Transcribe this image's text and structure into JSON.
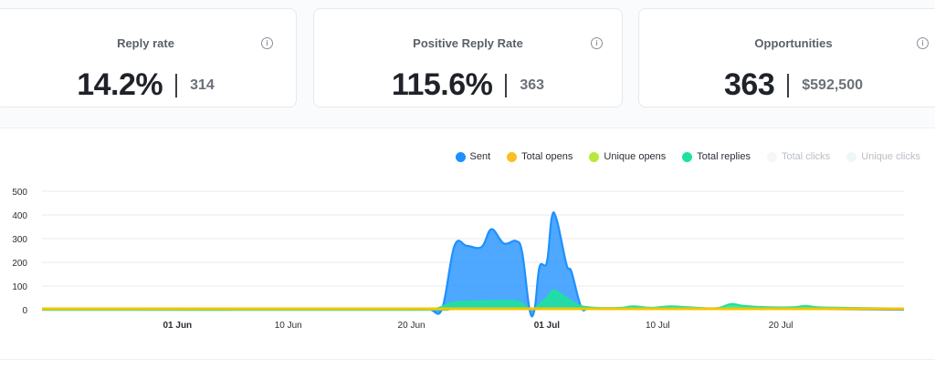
{
  "cards": [
    {
      "title": "Reply rate",
      "value": "14.2%",
      "sub": "314"
    },
    {
      "title": "Positive Reply Rate",
      "value": "115.6%",
      "sub": "363"
    },
    {
      "title": "Opportunities",
      "value": "363",
      "sub": "$592,500"
    }
  ],
  "info_icon_glyph": "i",
  "legend": [
    {
      "label": "Sent",
      "color": "#1e90ff",
      "enabled": true
    },
    {
      "label": "Total opens",
      "color": "#fbbf24",
      "enabled": true
    },
    {
      "label": "Unique opens",
      "color": "#b8e83a",
      "enabled": true
    },
    {
      "label": "Total replies",
      "color": "#1de39a",
      "enabled": true
    },
    {
      "label": "Total clicks",
      "color": "#f4f6f8",
      "enabled": false
    },
    {
      "label": "Unique clicks",
      "color": "#eef7f7",
      "enabled": false
    }
  ],
  "chart_data": {
    "type": "area",
    "ylim": [
      0,
      500
    ],
    "yticks": [
      0,
      100,
      200,
      300,
      400,
      500
    ],
    "xticks": [
      {
        "label": "01 Jun",
        "day": 0,
        "bold": true
      },
      {
        "label": "10 Jun",
        "day": 9,
        "bold": false
      },
      {
        "label": "20 Jun",
        "day": 19,
        "bold": false
      },
      {
        "label": "01 Jul",
        "day": 30,
        "bold": true
      },
      {
        "label": "10 Jul",
        "day": 39,
        "bold": false
      },
      {
        "label": "20 Jul",
        "day": 49,
        "bold": false
      }
    ],
    "x_range": [
      -11,
      59
    ],
    "series": [
      {
        "name": "Sent",
        "color": "#1e90ff",
        "points": [
          [
            -11,
            0
          ],
          [
            19,
            0
          ],
          [
            20.5,
            0
          ],
          [
            21.5,
            5
          ],
          [
            22.5,
            270
          ],
          [
            23.5,
            270
          ],
          [
            24.7,
            265
          ],
          [
            25.5,
            340
          ],
          [
            26.5,
            280
          ],
          [
            27.5,
            290
          ],
          [
            28,
            240
          ],
          [
            28.6,
            0
          ],
          [
            29,
            0
          ],
          [
            29.4,
            180
          ],
          [
            30,
            200
          ],
          [
            30.4,
            390
          ],
          [
            30.8,
            380
          ],
          [
            31.6,
            190
          ],
          [
            32,
            160
          ],
          [
            32.8,
            10
          ],
          [
            33.5,
            5
          ],
          [
            36,
            5
          ],
          [
            45,
            5
          ],
          [
            59,
            0
          ]
        ]
      },
      {
        "name": "Total replies",
        "color": "#1de39a",
        "points": [
          [
            -11,
            0
          ],
          [
            19,
            0
          ],
          [
            21,
            5
          ],
          [
            22.5,
            30
          ],
          [
            25,
            35
          ],
          [
            27.5,
            35
          ],
          [
            28.5,
            5
          ],
          [
            29,
            5
          ],
          [
            30,
            50
          ],
          [
            30.5,
            80
          ],
          [
            31,
            70
          ],
          [
            32.5,
            20
          ],
          [
            34,
            8
          ],
          [
            36,
            8
          ],
          [
            37,
            14
          ],
          [
            38.5,
            8
          ],
          [
            40,
            14
          ],
          [
            41.5,
            10
          ],
          [
            43,
            6
          ],
          [
            44,
            8
          ],
          [
            45,
            24
          ],
          [
            46,
            16
          ],
          [
            48,
            10
          ],
          [
            50,
            10
          ],
          [
            51,
            16
          ],
          [
            52,
            10
          ],
          [
            54,
            8
          ],
          [
            59,
            5
          ]
        ]
      },
      {
        "name": "Total opens",
        "color": "#f5c400",
        "points": [
          [
            -11,
            4
          ],
          [
            59,
            4
          ]
        ]
      }
    ]
  }
}
